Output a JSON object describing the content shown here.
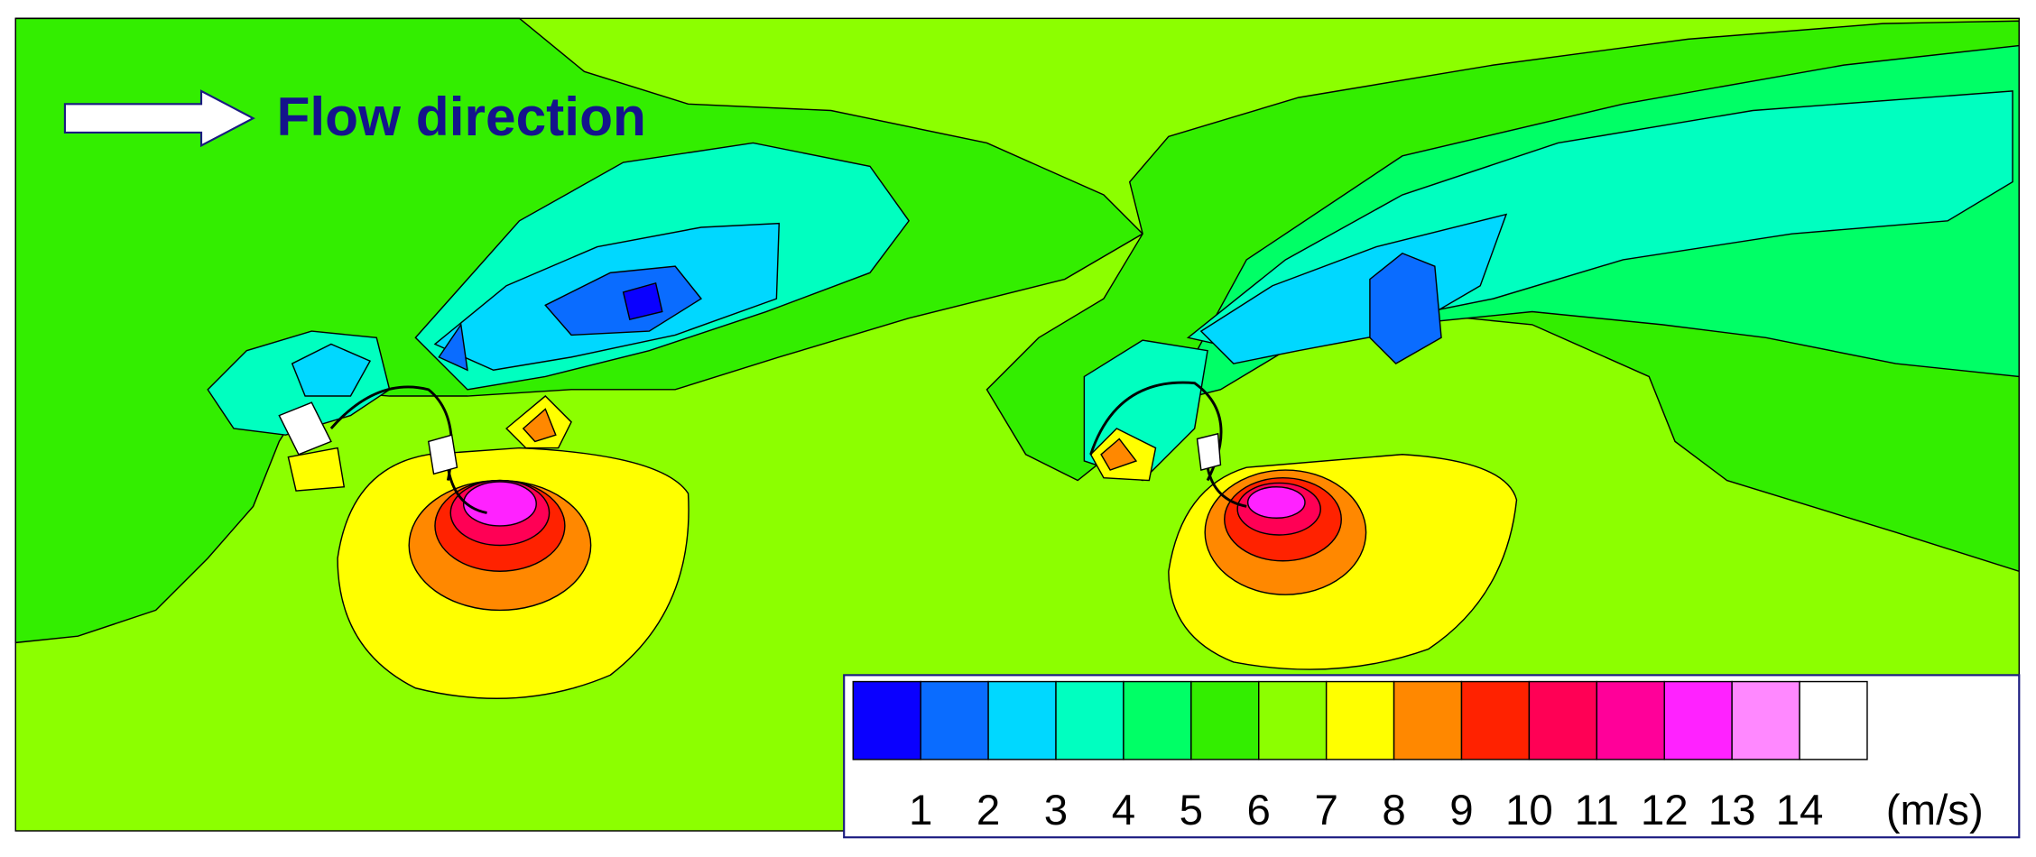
{
  "annotation": "Flow direction",
  "legend": {
    "levels": [
      1,
      2,
      3,
      4,
      5,
      6,
      7,
      8,
      9,
      10,
      11,
      12,
      13,
      14
    ],
    "colors": [
      "#0a00ff",
      "#0a6cff",
      "#00d8ff",
      "#00ffc0",
      "#00ff66",
      "#33ee00",
      "#8cff00",
      "#ffff00",
      "#ff8800",
      "#ff2200",
      "#ff0055",
      "#ff0099",
      "#ff22ff",
      "#ff88ff",
      "#ffffff"
    ],
    "unit": "(m/s)"
  }
}
